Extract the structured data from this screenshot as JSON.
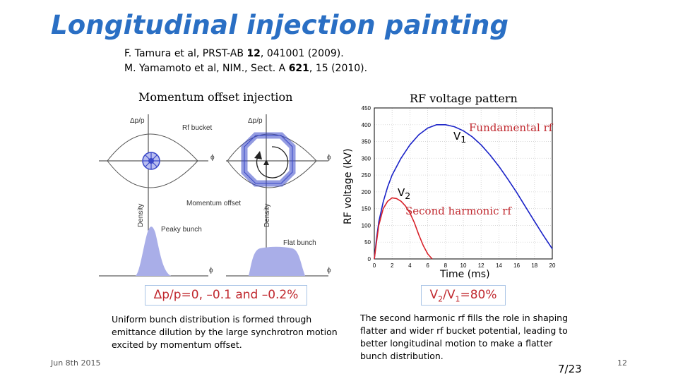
{
  "title": "Longitudinal injection painting",
  "references": [
    {
      "pre": "F. Tamura et al, PRST-AB ",
      "vol": "12",
      "post": ", 041001 (2009)."
    },
    {
      "pre": "M. Yamamoto et al, NIM., Sect. A ",
      "vol": "621",
      "post": ", 15 (2010)."
    }
  ],
  "left_panel": {
    "heading": "Momentum offset injection",
    "labels": {
      "dp_p": "Δp/p",
      "rf_bucket": "Rf bucket",
      "phi": "ϕ",
      "momentum_offset": "Momentum offset",
      "density": "Density",
      "peaky_bunch": "Peaky bunch",
      "flat_bunch": "Flat bunch"
    },
    "caption_box": "Δp/p=0, –0.1 and –0.2%",
    "description": [
      "Uniform bunch distribution is formed through",
      "emittance dilution by the large synchrotron motion",
      "excited by momentum offset."
    ]
  },
  "right_panel": {
    "heading": "RF voltage pattern",
    "annotations": {
      "v1": "V",
      "v1_sub": "1",
      "fundamental": "Fundamental rf",
      "v2": "V",
      "v2_sub": "2",
      "second": "Second harmonic rf"
    },
    "caption_box": {
      "v2": "V",
      "s2": "2",
      "slash": "/V",
      "s1": "1",
      "rest": "=80%"
    },
    "description": [
      "The second harmonic rf fills the role in shaping",
      "flatter and wider rf bucket potential, leading to",
      "better longitudinal motion to make a flatter",
      "bunch distribution."
    ]
  },
  "chart_data": {
    "type": "line",
    "title": "RF voltage pattern",
    "xlabel": "Time (ms)",
    "ylabel": "RF voltage (kV)",
    "xlim": [
      0,
      20
    ],
    "ylim": [
      0,
      450
    ],
    "xticks": [
      0,
      2,
      4,
      6,
      8,
      10,
      12,
      14,
      16,
      18,
      20
    ],
    "yticks": [
      0,
      50,
      100,
      150,
      200,
      250,
      300,
      350,
      400,
      450
    ],
    "grid": true,
    "series": [
      {
        "name": "Fundamental rf",
        "color": "#1a22c8",
        "x": [
          0.0,
          0.25,
          0.5,
          1.0,
          1.5,
          2.0,
          3.0,
          4.0,
          5.0,
          6.0,
          7.0,
          8.0,
          9.0,
          10.0,
          11.0,
          12.0,
          13.0,
          14.0,
          15.0,
          16.0,
          17.0,
          18.0,
          19.0,
          20.0
        ],
        "y": [
          0,
          60,
          110,
          170,
          215,
          250,
          300,
          340,
          370,
          390,
          400,
          400,
          394,
          382,
          364,
          340,
          310,
          276,
          238,
          198,
          155,
          112,
          70,
          30
        ]
      },
      {
        "name": "Second harmonic rf",
        "color": "#d8222a",
        "x": [
          0.0,
          0.25,
          0.5,
          1.0,
          1.5,
          2.0,
          2.5,
          3.0,
          3.5,
          4.0,
          4.5,
          5.0,
          5.5,
          6.0,
          6.5
        ],
        "y": [
          0,
          50,
          100,
          150,
          172,
          182,
          180,
          172,
          158,
          137,
          108,
          72,
          40,
          15,
          0
        ]
      }
    ]
  },
  "footer": {
    "date": "Jun 8th 2015",
    "page": "7/23",
    "slide_number": "12"
  }
}
